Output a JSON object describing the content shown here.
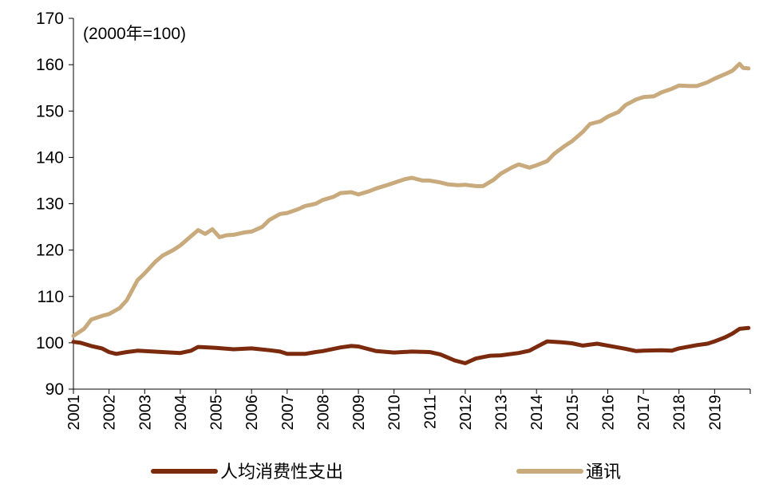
{
  "chart_data": {
    "type": "line",
    "annotation": "(2000年=100)",
    "ylim": [
      90,
      170
    ],
    "yticks": [
      90,
      100,
      110,
      120,
      130,
      140,
      150,
      160,
      170
    ],
    "xlim": [
      2001,
      2020
    ],
    "xticks": [
      "2001",
      "2002",
      "2003",
      "2004",
      "2005",
      "2006",
      "2007",
      "2008",
      "2009",
      "2010",
      "2011",
      "2012",
      "2013",
      "2014",
      "2015",
      "2016",
      "2017",
      "2018",
      "2019"
    ],
    "grid": false,
    "legend_position": "bottom",
    "series": [
      {
        "name": "人均消费性支出",
        "color": "#7B2A0E",
        "x": [
          2001.0,
          2001.2,
          2001.5,
          2001.8,
          2002.0,
          2002.2,
          2002.5,
          2002.8,
          2003.0,
          2003.5,
          2004.0,
          2004.3,
          2004.5,
          2004.8,
          2005.0,
          2005.5,
          2006.0,
          2006.5,
          2006.8,
          2007.0,
          2007.5,
          2007.8,
          2008.0,
          2008.5,
          2008.8,
          2009.0,
          2009.5,
          2010.0,
          2010.5,
          2011.0,
          2011.3,
          2011.7,
          2012.0,
          2012.3,
          2012.7,
          2013.0,
          2013.5,
          2013.8,
          2014.0,
          2014.3,
          2014.7,
          2015.0,
          2015.3,
          2015.7,
          2016.0,
          2016.5,
          2016.8,
          2017.0,
          2017.5,
          2017.8,
          2018.0,
          2018.5,
          2018.8,
          2019.0,
          2019.3,
          2019.5,
          2019.7,
          2019.95
        ],
        "values": [
          100.2,
          100.0,
          99.3,
          98.8,
          98.0,
          97.6,
          98.0,
          98.3,
          98.2,
          98.0,
          97.8,
          98.3,
          99.1,
          99.0,
          98.9,
          98.6,
          98.8,
          98.4,
          98.1,
          97.6,
          97.6,
          98.0,
          98.2,
          99.0,
          99.3,
          99.2,
          98.2,
          97.9,
          98.1,
          98.0,
          97.5,
          96.2,
          95.6,
          96.6,
          97.2,
          97.3,
          97.8,
          98.3,
          99.1,
          100.3,
          100.1,
          99.9,
          99.4,
          99.8,
          99.4,
          98.7,
          98.2,
          98.3,
          98.4,
          98.3,
          98.8,
          99.5,
          99.8,
          100.3,
          101.2,
          102.0,
          103.0,
          103.2
        ]
      },
      {
        "name": "通讯",
        "color": "#C8AA7C",
        "x": [
          2001.0,
          2001.3,
          2001.5,
          2001.8,
          2002.0,
          2002.3,
          2002.5,
          2002.8,
          2003.0,
          2003.3,
          2003.5,
          2003.8,
          2004.0,
          2004.3,
          2004.5,
          2004.7,
          2004.9,
          2005.1,
          2005.3,
          2005.5,
          2005.8,
          2006.0,
          2006.3,
          2006.5,
          2006.8,
          2007.0,
          2007.3,
          2007.5,
          2007.8,
          2008.0,
          2008.3,
          2008.5,
          2008.8,
          2009.0,
          2009.3,
          2009.5,
          2009.8,
          2010.0,
          2010.3,
          2010.5,
          2010.8,
          2011.0,
          2011.3,
          2011.5,
          2011.8,
          2012.0,
          2012.3,
          2012.5,
          2012.8,
          2013.0,
          2013.3,
          2013.5,
          2013.8,
          2014.0,
          2014.3,
          2014.5,
          2014.8,
          2015.0,
          2015.3,
          2015.5,
          2015.8,
          2016.0,
          2016.3,
          2016.5,
          2016.8,
          2017.0,
          2017.3,
          2017.5,
          2017.8,
          2018.0,
          2018.3,
          2018.5,
          2018.8,
          2019.0,
          2019.3,
          2019.5,
          2019.7,
          2019.8,
          2019.95
        ],
        "values": [
          101.5,
          103.0,
          105.0,
          105.8,
          106.2,
          107.5,
          109.2,
          113.5,
          115.0,
          117.5,
          118.8,
          120.0,
          121.0,
          123.0,
          124.3,
          123.5,
          124.5,
          122.8,
          123.2,
          123.3,
          123.8,
          124.0,
          125.0,
          126.5,
          127.8,
          128.0,
          128.8,
          129.5,
          130.0,
          130.8,
          131.5,
          132.3,
          132.5,
          132.0,
          132.7,
          133.3,
          134.0,
          134.5,
          135.3,
          135.6,
          135.0,
          135.0,
          134.6,
          134.2,
          134.0,
          134.1,
          133.8,
          133.8,
          135.2,
          136.5,
          137.8,
          138.5,
          137.8,
          138.3,
          139.2,
          140.8,
          142.5,
          143.5,
          145.5,
          147.2,
          147.8,
          148.8,
          149.8,
          151.3,
          152.5,
          153.0,
          153.2,
          154.0,
          154.8,
          155.5,
          155.4,
          155.4,
          156.2,
          157.0,
          158.0,
          158.7,
          160.2,
          159.3,
          159.2
        ]
      }
    ]
  }
}
